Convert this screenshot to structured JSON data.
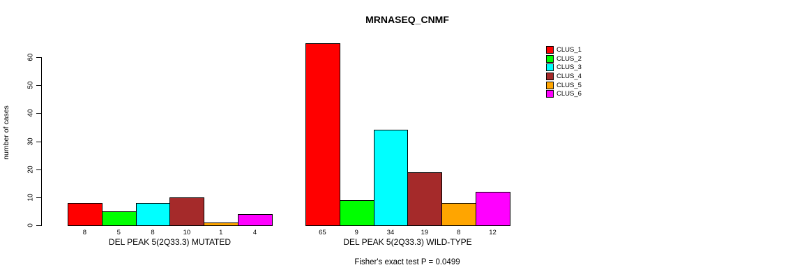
{
  "title": "MRNASEQ_CNMF",
  "chart_data": {
    "type": "bar",
    "title": "MRNASEQ_CNMF",
    "xlabel": "",
    "ylabel": "number of cases",
    "ylim": [
      0,
      60
    ],
    "yticks": [
      0,
      10,
      20,
      30,
      40,
      50,
      60
    ],
    "grid": false,
    "legend_position": "right",
    "categories": [
      "DEL PEAK 5(2Q33.3) MUTATED",
      "DEL PEAK 5(2Q33.3) WILD-TYPE"
    ],
    "series": [
      {
        "name": "CLUS_1",
        "color": "#FF0000",
        "values": [
          8,
          65
        ]
      },
      {
        "name": "CLUS_2",
        "color": "#00FF00",
        "values": [
          5,
          9
        ]
      },
      {
        "name": "CLUS_3",
        "color": "#00FFFF",
        "values": [
          8,
          34
        ]
      },
      {
        "name": "CLUS_4",
        "color": "#A52A2A",
        "values": [
          10,
          19
        ]
      },
      {
        "name": "CLUS_5",
        "color": "#FFA500",
        "values": [
          1,
          8
        ]
      },
      {
        "name": "CLUS_6",
        "color": "#FF00FF",
        "values": [
          4,
          12
        ]
      }
    ],
    "bar_value_labels_shown": true,
    "annotation": "Fisher's exact test P = 0.0499"
  }
}
